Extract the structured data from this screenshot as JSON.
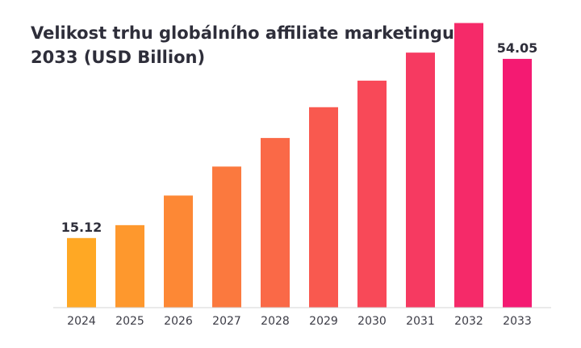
{
  "chart_data": {
    "type": "bar",
    "title": "Velikost trhu globálního affiliate marketingu 2033 (USD Billion)",
    "xlabel": "",
    "ylabel": "",
    "categories": [
      "2024",
      "2025",
      "2026",
      "2027",
      "2028",
      "2029",
      "2030",
      "2031",
      "2032",
      "2033"
    ],
    "values": [
      15.12,
      17.92,
      24.35,
      30.65,
      36.86,
      43.55,
      49.32,
      55.41,
      61.84,
      54.05
    ],
    "data_labels": [
      {
        "index": 0,
        "text": "15.12"
      },
      {
        "index": 9,
        "text": "54.05"
      }
    ],
    "grid": false,
    "legend": "none",
    "colors": {
      "start": "#FFA824",
      "end": "#F41A72"
    }
  }
}
